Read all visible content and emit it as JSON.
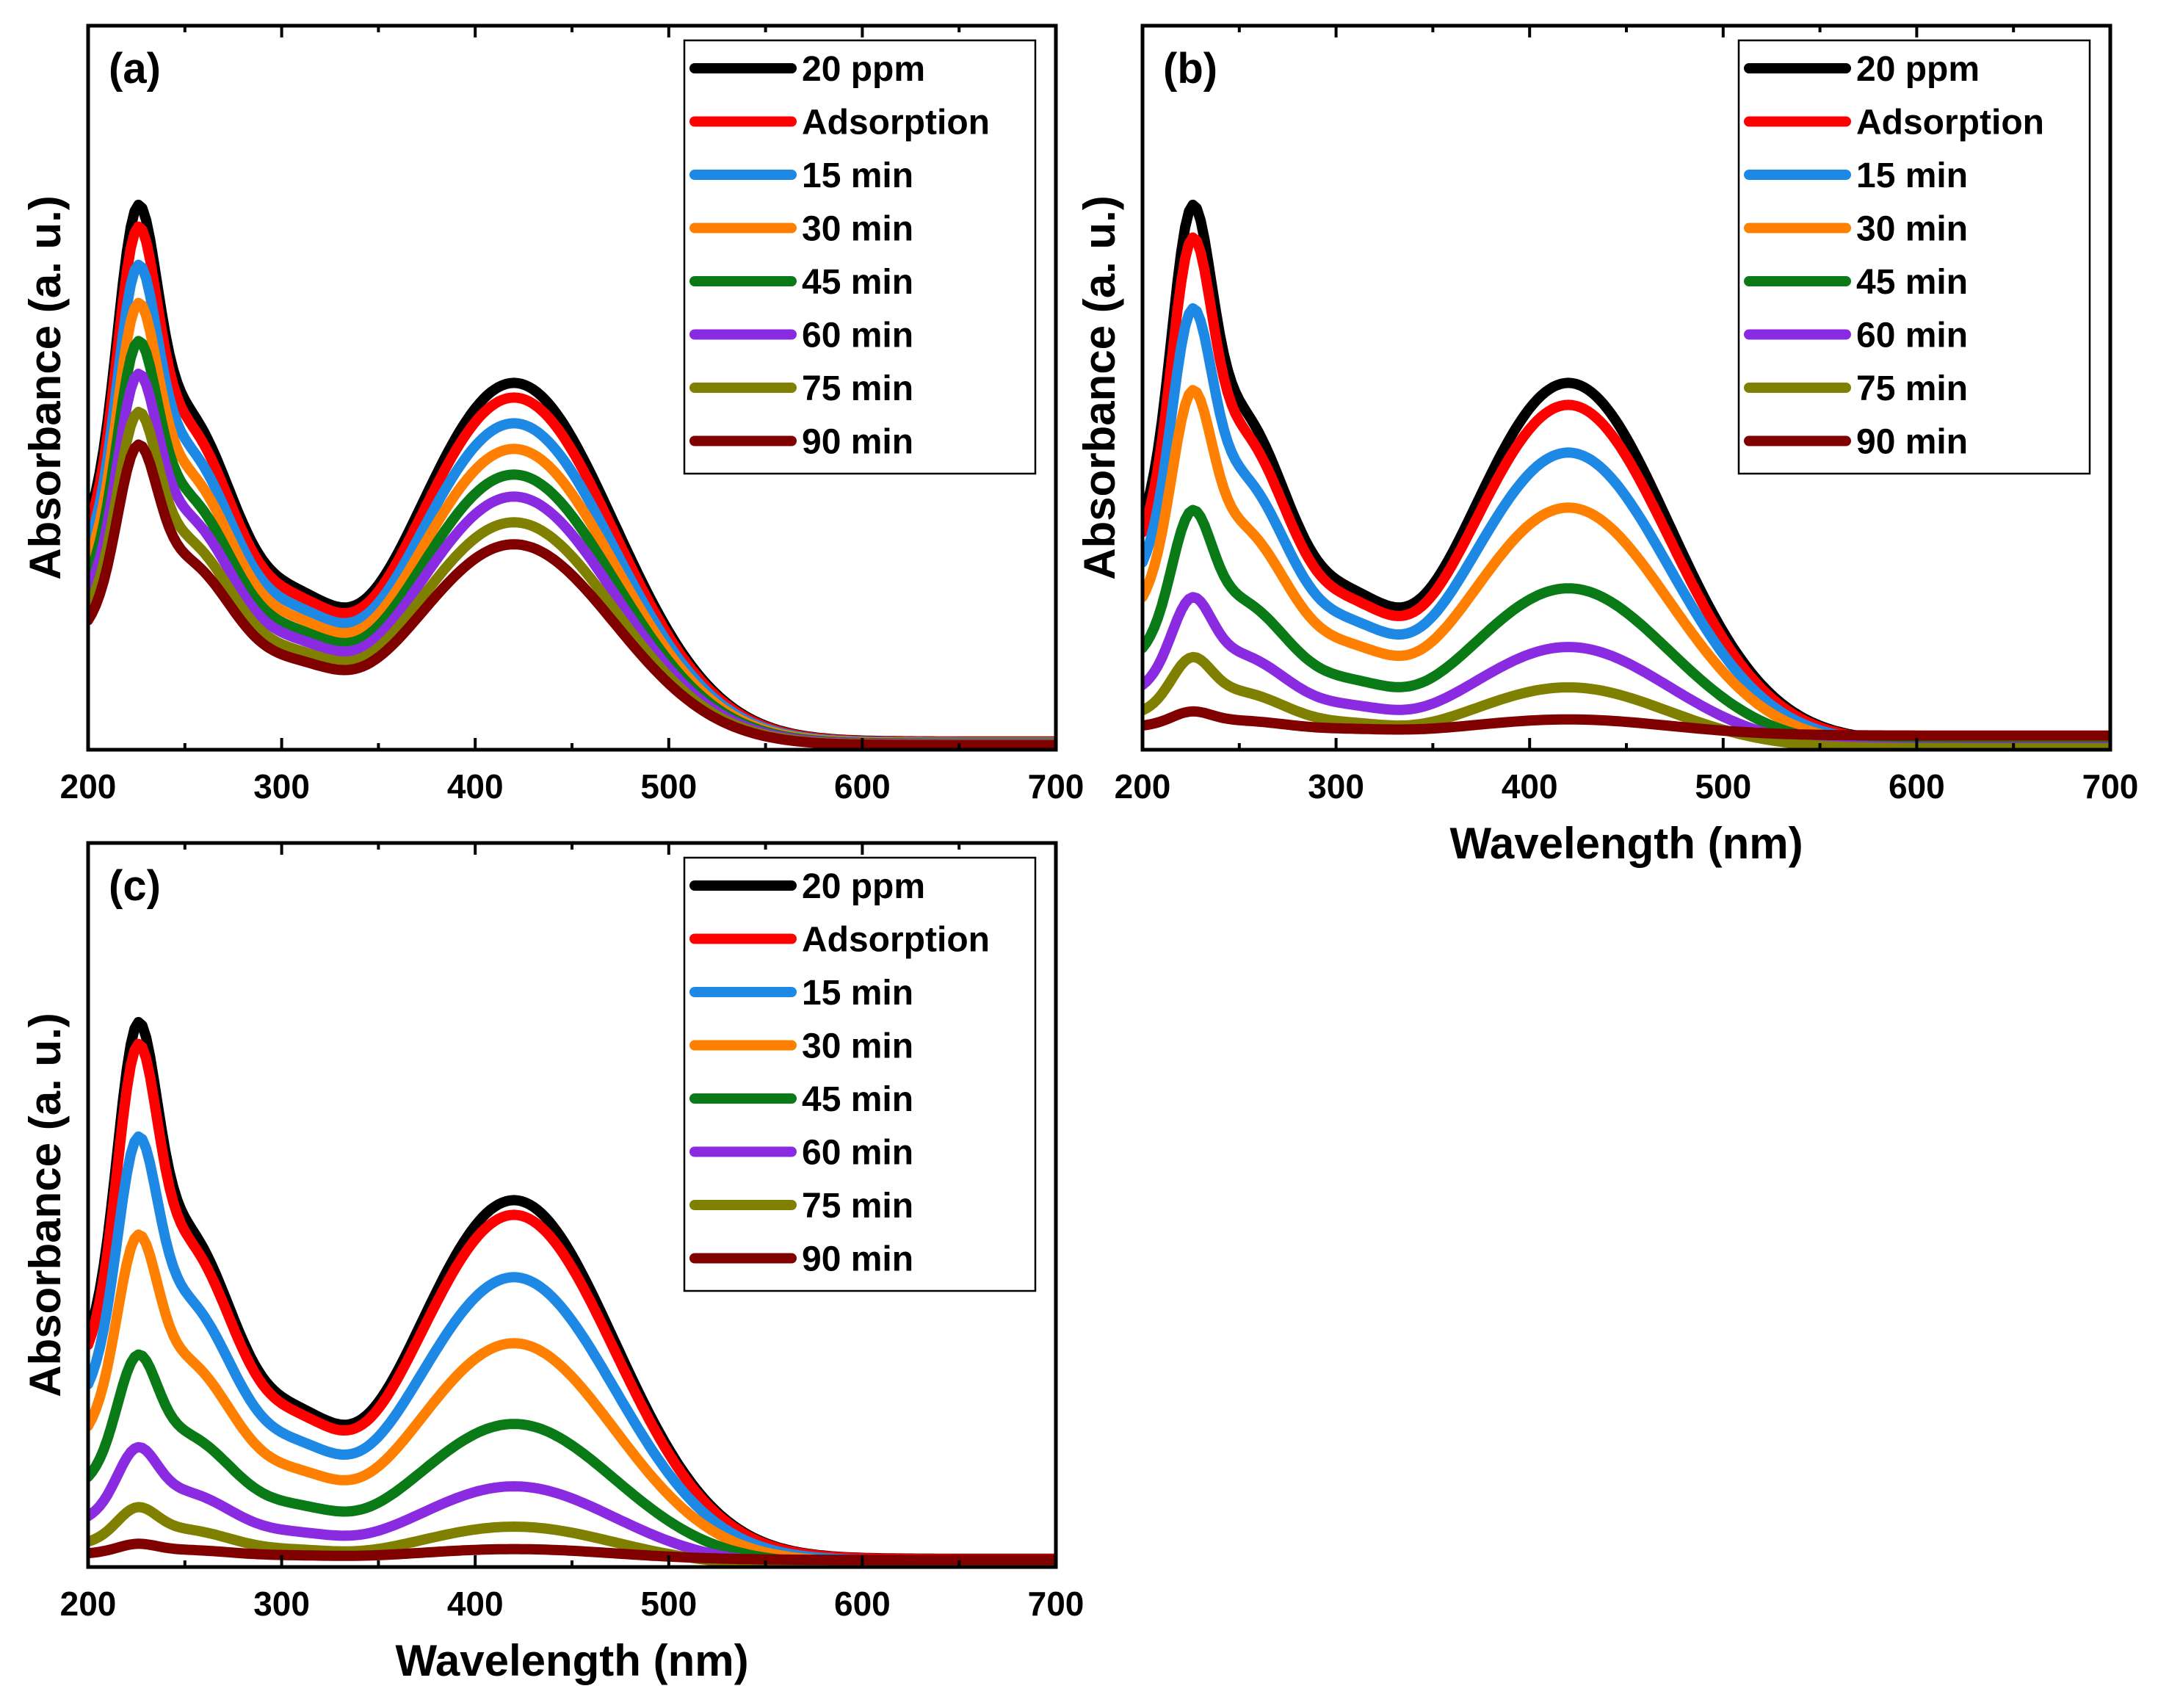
{
  "chart_data": [
    {
      "type": "line",
      "panel_label": "(a)",
      "xlabel": "",
      "ylabel": "Absorbance (a. u.)",
      "xlim": [
        200,
        700
      ],
      "xticks": [
        200,
        300,
        400,
        500,
        600,
        700
      ],
      "ylim": [
        0,
        1.05
      ],
      "y_ticks_shown": false,
      "legend_position": "top-right",
      "series": [
        {
          "name": "20 ppm",
          "color": "#000000",
          "scale": 1.0,
          "baseline": 0
        },
        {
          "name": "Adsorption",
          "color": "#ff0000",
          "scale": 0.96,
          "baseline": 0
        },
        {
          "name": "15 min",
          "color": "#1e88e5",
          "scale": 0.89,
          "baseline": 0
        },
        {
          "name": "30 min",
          "color": "#ff8000",
          "scale": 0.82,
          "baseline": 0
        },
        {
          "name": "45 min",
          "color": "#0a7a16",
          "scale": 0.75,
          "baseline": 0
        },
        {
          "name": "60 min",
          "color": "#8a2be2",
          "scale": 0.69,
          "baseline": 0
        },
        {
          "name": "75 min",
          "color": "#808000",
          "scale": 0.62,
          "baseline": 0
        },
        {
          "name": "90 min",
          "color": "#800000",
          "scale": 0.56,
          "baseline": 0
        }
      ]
    },
    {
      "type": "line",
      "panel_label": "(b)",
      "xlabel": "Wavelength (nm)",
      "ylabel": "Absorbance (a. u.)",
      "xlim": [
        200,
        700
      ],
      "xticks": [
        200,
        300,
        400,
        500,
        600,
        700
      ],
      "ylim": [
        0,
        1.05
      ],
      "y_ticks_shown": false,
      "legend_position": "top-right",
      "series": [
        {
          "name": "20 ppm",
          "color": "#000000",
          "scale": 1.0,
          "baseline": 0
        },
        {
          "name": "Adsorption",
          "color": "#ff0000",
          "scale": 0.94,
          "baseline": 0
        },
        {
          "name": "15 min",
          "color": "#1e88e5",
          "scale": 0.81,
          "baseline": 0
        },
        {
          "name": "30 min",
          "color": "#ff8000",
          "scale": 0.66,
          "baseline": 0
        },
        {
          "name": "45 min",
          "color": "#0a7a16",
          "scale": 0.44,
          "baseline": 0
        },
        {
          "name": "60 min",
          "color": "#8a2be2",
          "scale": 0.28,
          "baseline": 0
        },
        {
          "name": "75 min",
          "color": "#808000",
          "scale": 0.17,
          "baseline": 0
        },
        {
          "name": "90 min",
          "color": "#800000",
          "scale": 0.045,
          "baseline": 0.02
        }
      ]
    },
    {
      "type": "line",
      "panel_label": "(c)",
      "xlabel": "Wavelength (nm)",
      "ylabel": "Absorbance (a. u.)",
      "xlim": [
        200,
        700
      ],
      "xticks": [
        200,
        300,
        400,
        500,
        600,
        700
      ],
      "ylim": [
        0,
        1.05
      ],
      "y_ticks_shown": false,
      "legend_position": "top-right",
      "series": [
        {
          "name": "20 ppm",
          "color": "#000000",
          "scale": 1.0,
          "baseline": 0
        },
        {
          "name": "Adsorption",
          "color": "#ff0000",
          "scale": 0.96,
          "baseline": 0
        },
        {
          "name": "15 min",
          "color": "#1e88e5",
          "scale": 0.79,
          "baseline": 0
        },
        {
          "name": "30 min",
          "color": "#ff8000",
          "scale": 0.61,
          "baseline": 0
        },
        {
          "name": "45 min",
          "color": "#0a7a16",
          "scale": 0.39,
          "baseline": 0
        },
        {
          "name": "60 min",
          "color": "#8a2be2",
          "scale": 0.22,
          "baseline": 0
        },
        {
          "name": "75 min",
          "color": "#808000",
          "scale": 0.11,
          "baseline": 0
        },
        {
          "name": "90 min",
          "color": "#800000",
          "scale": 0.03,
          "baseline": 0.01
        }
      ]
    }
  ]
}
